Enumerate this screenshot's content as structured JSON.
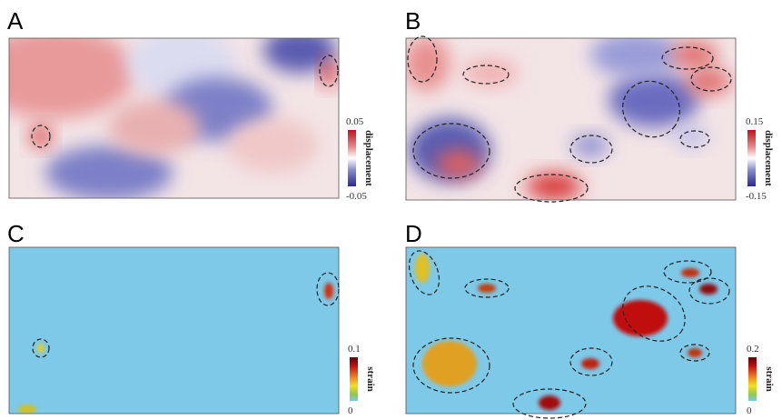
{
  "panels": [
    {
      "label": "A",
      "colorbar": {
        "label": "displacement",
        "ticks": [
          0.05,
          -0.05
        ]
      }
    },
    {
      "label": "B",
      "colorbar": {
        "label": "displacement",
        "ticks": [
          0.15,
          -0.15
        ]
      }
    },
    {
      "label": "C",
      "colorbar": {
        "label": "strain",
        "ticks": [
          0.1,
          0
        ]
      }
    },
    {
      "label": "D",
      "colorbar": {
        "label": "strain",
        "ticks": [
          0.2,
          0
        ]
      }
    }
  ]
}
